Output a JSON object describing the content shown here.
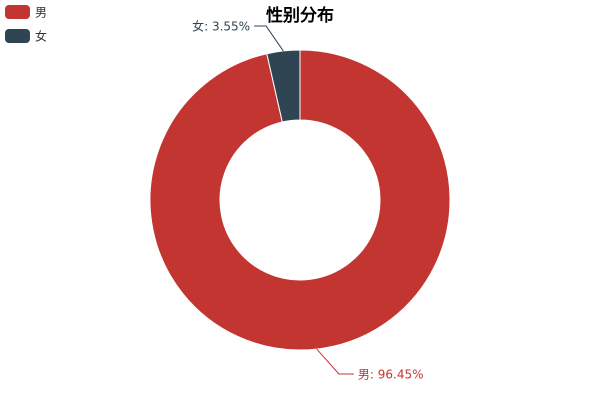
{
  "chart_data": {
    "type": "pie",
    "variant": "donut",
    "title": "性别分布",
    "legend_position": "top-left",
    "categories": [
      "男",
      "女"
    ],
    "values": [
      96.45,
      3.55
    ],
    "labels": [
      "男: 96.45%",
      "女: 3.55%"
    ],
    "colors": [
      "#c23531",
      "#2f4554"
    ],
    "unit": "%"
  }
}
